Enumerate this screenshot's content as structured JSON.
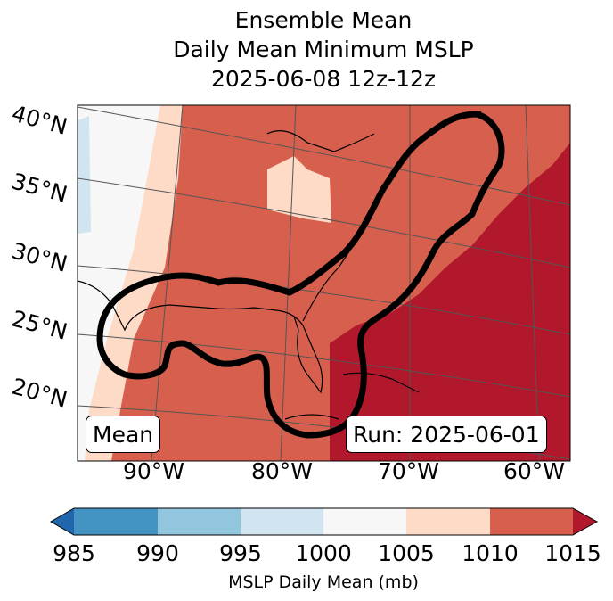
{
  "title": {
    "line1": "Ensemble Mean",
    "line2": "Daily Mean Minimum MSLP",
    "line3": "2025-06-08 12z-12z"
  },
  "map": {
    "lat_labels": [
      "40°N",
      "35°N",
      "30°N",
      "25°N",
      "20°N"
    ],
    "lon_labels": [
      "90°W",
      "80°W",
      "70°W",
      "60°W"
    ],
    "mean_label": "Mean",
    "run_label": "Run: 2025-06-01"
  },
  "colorbar": {
    "ticks": [
      "985",
      "990",
      "995",
      "1000",
      "1005",
      "1010",
      "1015"
    ],
    "label": "MSLP Daily Mean (mb)",
    "colors": {
      "under": "#2166ac",
      "b985": "#4393c3",
      "b990": "#92c5de",
      "b995": "#d1e5f0",
      "b1000": "#f7f7f7",
      "b1005": "#fddbc7",
      "b1010": "#d6604d",
      "over": "#b2182b"
    }
  }
}
